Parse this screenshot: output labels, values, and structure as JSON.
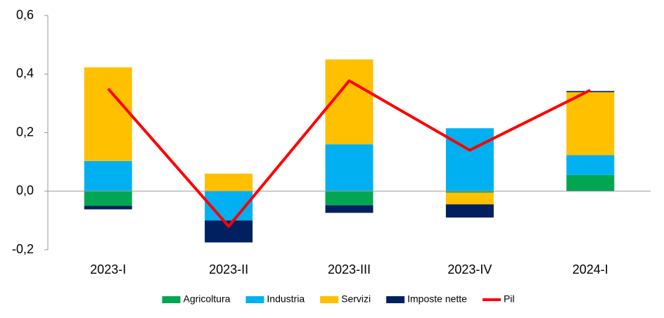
{
  "chart_data": {
    "type": "bar",
    "stacked": true,
    "categories": [
      "2023-I",
      "2023-II",
      "2023-III",
      "2023-IV",
      "2024-I"
    ],
    "series": [
      {
        "name": "Agricoltura",
        "color": "#00a651",
        "values": [
          -0.05,
          0,
          -0.048,
          -0.005,
          0.055
        ]
      },
      {
        "name": "Industria",
        "color": "#00b0f0",
        "values": [
          0.103,
          -0.1,
          0.16,
          0.215,
          0.068
        ]
      },
      {
        "name": "Servizi",
        "color": "#ffc000",
        "values": [
          0.32,
          0.06,
          0.29,
          -0.04,
          0.215
        ]
      },
      {
        "name": "Imposte nette",
        "color": "#002060",
        "values": [
          -0.012,
          -0.075,
          -0.026,
          -0.045,
          0.004
        ]
      },
      {
        "name": "Pil",
        "color": "#ff0000",
        "type": "line",
        "values": [
          0.35,
          -0.12,
          0.377,
          0.14,
          0.345
        ]
      }
    ],
    "ylim": [
      -0.2,
      0.6
    ],
    "yticks": [
      {
        "value": -0.2,
        "label": "-0,2"
      },
      {
        "value": 0,
        "label": "0,0"
      },
      {
        "value": 0.2,
        "label": "0,2"
      },
      {
        "value": 0.4,
        "label": "0,4"
      },
      {
        "value": 0.6,
        "label": "0,6"
      }
    ],
    "grid": false,
    "legend": "bottom"
  }
}
